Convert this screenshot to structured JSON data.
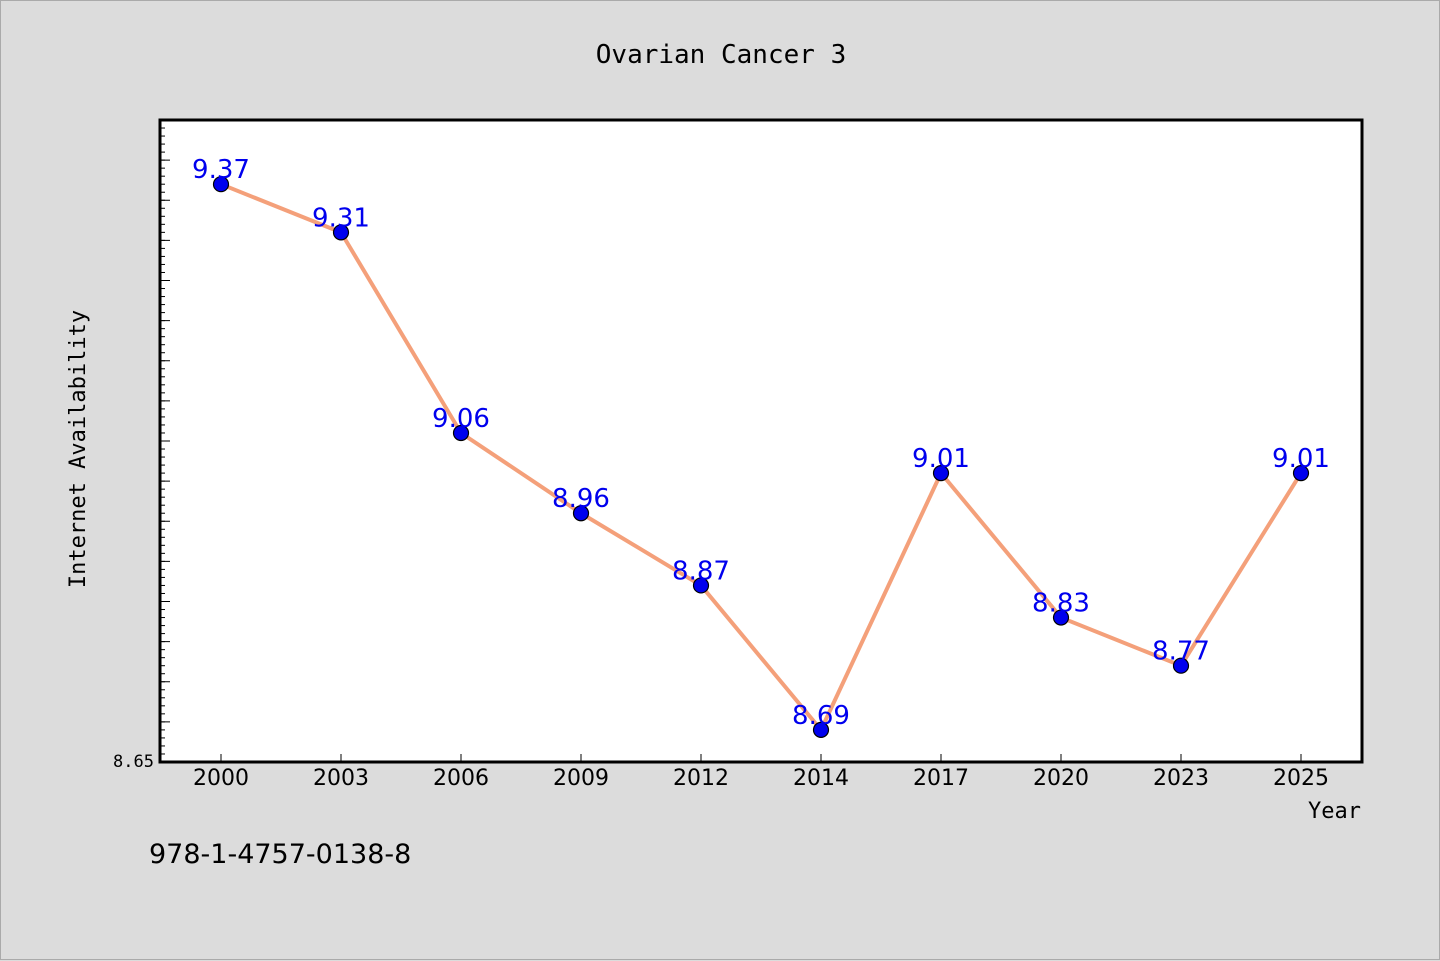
{
  "chart_data": {
    "type": "line",
    "title": "Ovarian Cancer 3",
    "xlabel": "Year",
    "ylabel": "Internet Availability",
    "categories": [
      "2000",
      "2003",
      "2006",
      "2009",
      "2012",
      "2014",
      "2017",
      "2020",
      "2023",
      "2025"
    ],
    "series": [
      {
        "values": [
          9.37,
          9.31,
          9.06,
          8.96,
          8.87,
          8.69,
          9.01,
          8.83,
          8.77,
          9.01
        ],
        "data_labels": [
          "9.37",
          "9.31",
          "9.06",
          "8.96",
          "8.87",
          "8.69",
          "9.01",
          "8.83",
          "8.77",
          "9.01"
        ],
        "line_color": "#f4a07a",
        "marker_color": "#0000ee",
        "label_color": "#0000ee"
      }
    ],
    "ylim": [
      8.65,
      9.45
    ],
    "y_tick_labels": [
      "8.65"
    ],
    "grid": false,
    "legend": "none"
  },
  "footer": {
    "isbn": "978-1-4757-0138-8"
  },
  "colors": {
    "background": "#dcdcdc",
    "plot_background": "#ffffff",
    "axis": "#000000"
  }
}
